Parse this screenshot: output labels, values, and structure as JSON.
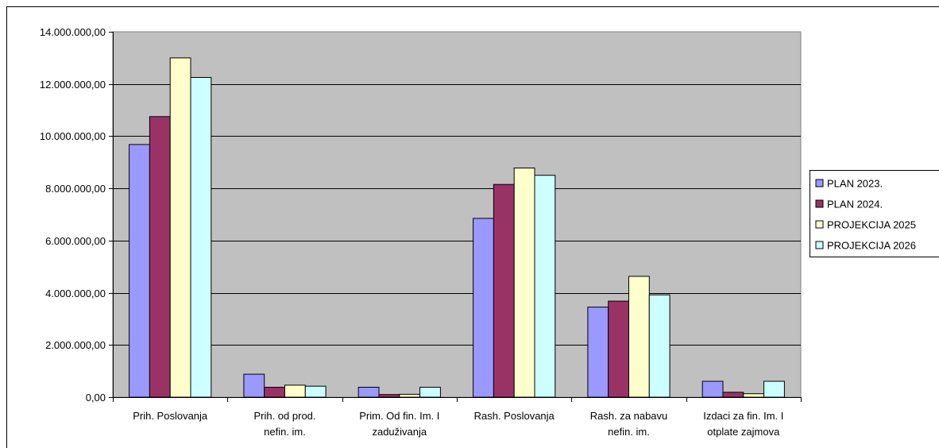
{
  "chart_data": {
    "type": "bar",
    "title": "",
    "xlabel": "",
    "ylabel": "",
    "categories": [
      [
        "Prih. Poslovanja"
      ],
      [
        "Prih. od prod.",
        "nefin. im."
      ],
      [
        "Prim. Od fin. Im. I",
        "zaduživanja"
      ],
      [
        "Rash. Poslovanja"
      ],
      [
        "Rash. za nabavu",
        "nefin. im."
      ],
      [
        "Izdaci za fin. Im. I",
        "otplate zajmova"
      ]
    ],
    "series": [
      {
        "name": "PLAN 2023.",
        "color": "#9999ff",
        "values": [
          9680000,
          880000,
          380000,
          6850000,
          3450000,
          610000
        ]
      },
      {
        "name": "PLAN 2024.",
        "color": "#993366",
        "values": [
          10750000,
          380000,
          100000,
          8150000,
          3680000,
          190000
        ]
      },
      {
        "name": "PROJEKCIJA 2025",
        "color": "#ffffcc",
        "values": [
          13000000,
          460000,
          110000,
          8780000,
          4630000,
          130000
        ]
      },
      {
        "name": "PROJEKCIJA 2026",
        "color": "#ccffff",
        "values": [
          12250000,
          420000,
          380000,
          8500000,
          3920000,
          610000
        ]
      }
    ],
    "yticks": [
      "0,00",
      "2.000.000,00",
      "4.000.000,00",
      "6.000.000,00",
      "8.000.000,00",
      "10.000.000,00",
      "12.000.000,00",
      "14.000.000,00"
    ],
    "ylim": [
      0,
      14000000
    ],
    "grid": true,
    "legend": "right",
    "plot_background": "#c0c0c0"
  }
}
